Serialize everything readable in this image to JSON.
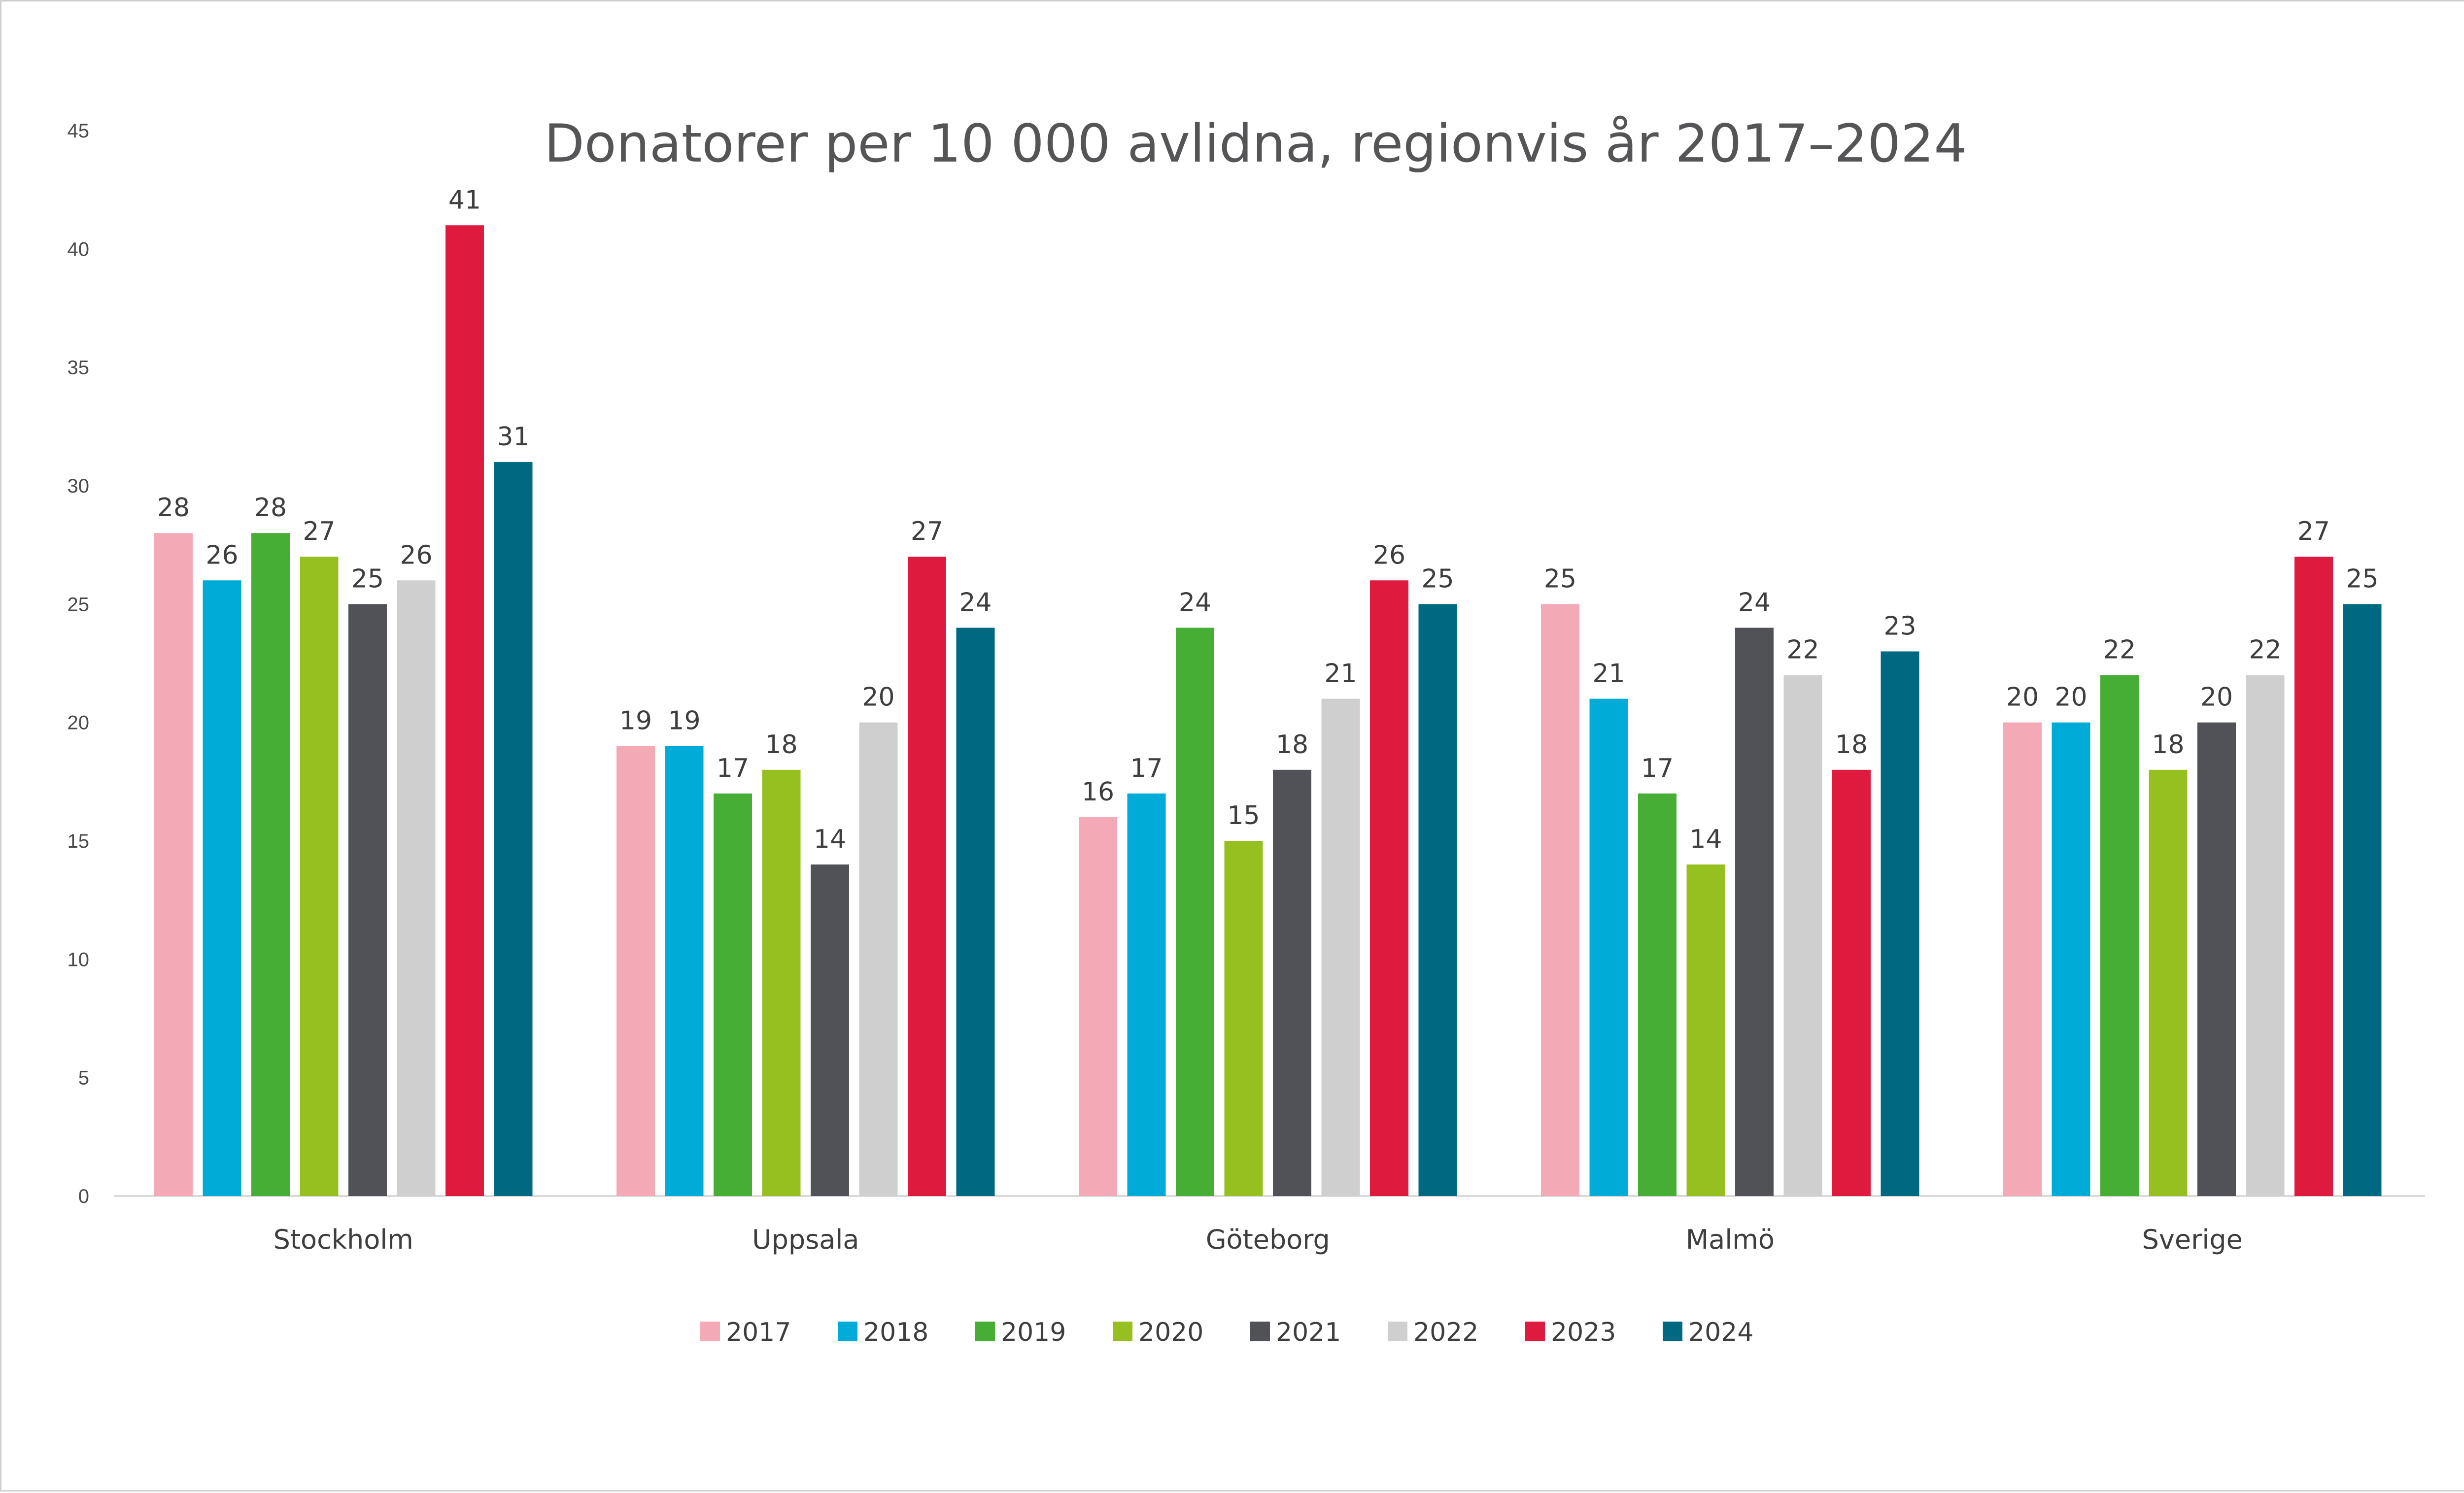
{
  "chart_data": {
    "type": "bar",
    "title": "Donatorer per 10 000 avlidna, regionvis år 2017–2024",
    "categories": [
      "Stockholm",
      "Uppsala",
      "Göteborg",
      "Malmö",
      "Sverige"
    ],
    "series": [
      {
        "name": "2017",
        "color": "#f4a9b6",
        "values": [
          28,
          19,
          16,
          25,
          20
        ]
      },
      {
        "name": "2018",
        "color": "#00acd7",
        "values": [
          26,
          19,
          17,
          21,
          20
        ]
      },
      {
        "name": "2019",
        "color": "#46ad35",
        "values": [
          28,
          17,
          24,
          17,
          22
        ]
      },
      {
        "name": "2020",
        "color": "#95c01f",
        "values": [
          27,
          18,
          15,
          14,
          18
        ]
      },
      {
        "name": "2021",
        "color": "#505257",
        "values": [
          25,
          14,
          18,
          24,
          20
        ]
      },
      {
        "name": "2022",
        "color": "#d0cfd0",
        "values": [
          26,
          20,
          21,
          22,
          22
        ]
      },
      {
        "name": "2023",
        "color": "#de1a3e",
        "values": [
          41,
          27,
          26,
          18,
          27
        ]
      },
      {
        "name": "2024",
        "color": "#006880",
        "values": [
          31,
          24,
          25,
          23,
          25
        ]
      }
    ],
    "ylim": [
      0,
      45
    ],
    "yticks": [
      0,
      5,
      10,
      15,
      20,
      25,
      30,
      35,
      40,
      45
    ],
    "gridlines": false,
    "data_labels": true,
    "legend_position": "bottom"
  }
}
